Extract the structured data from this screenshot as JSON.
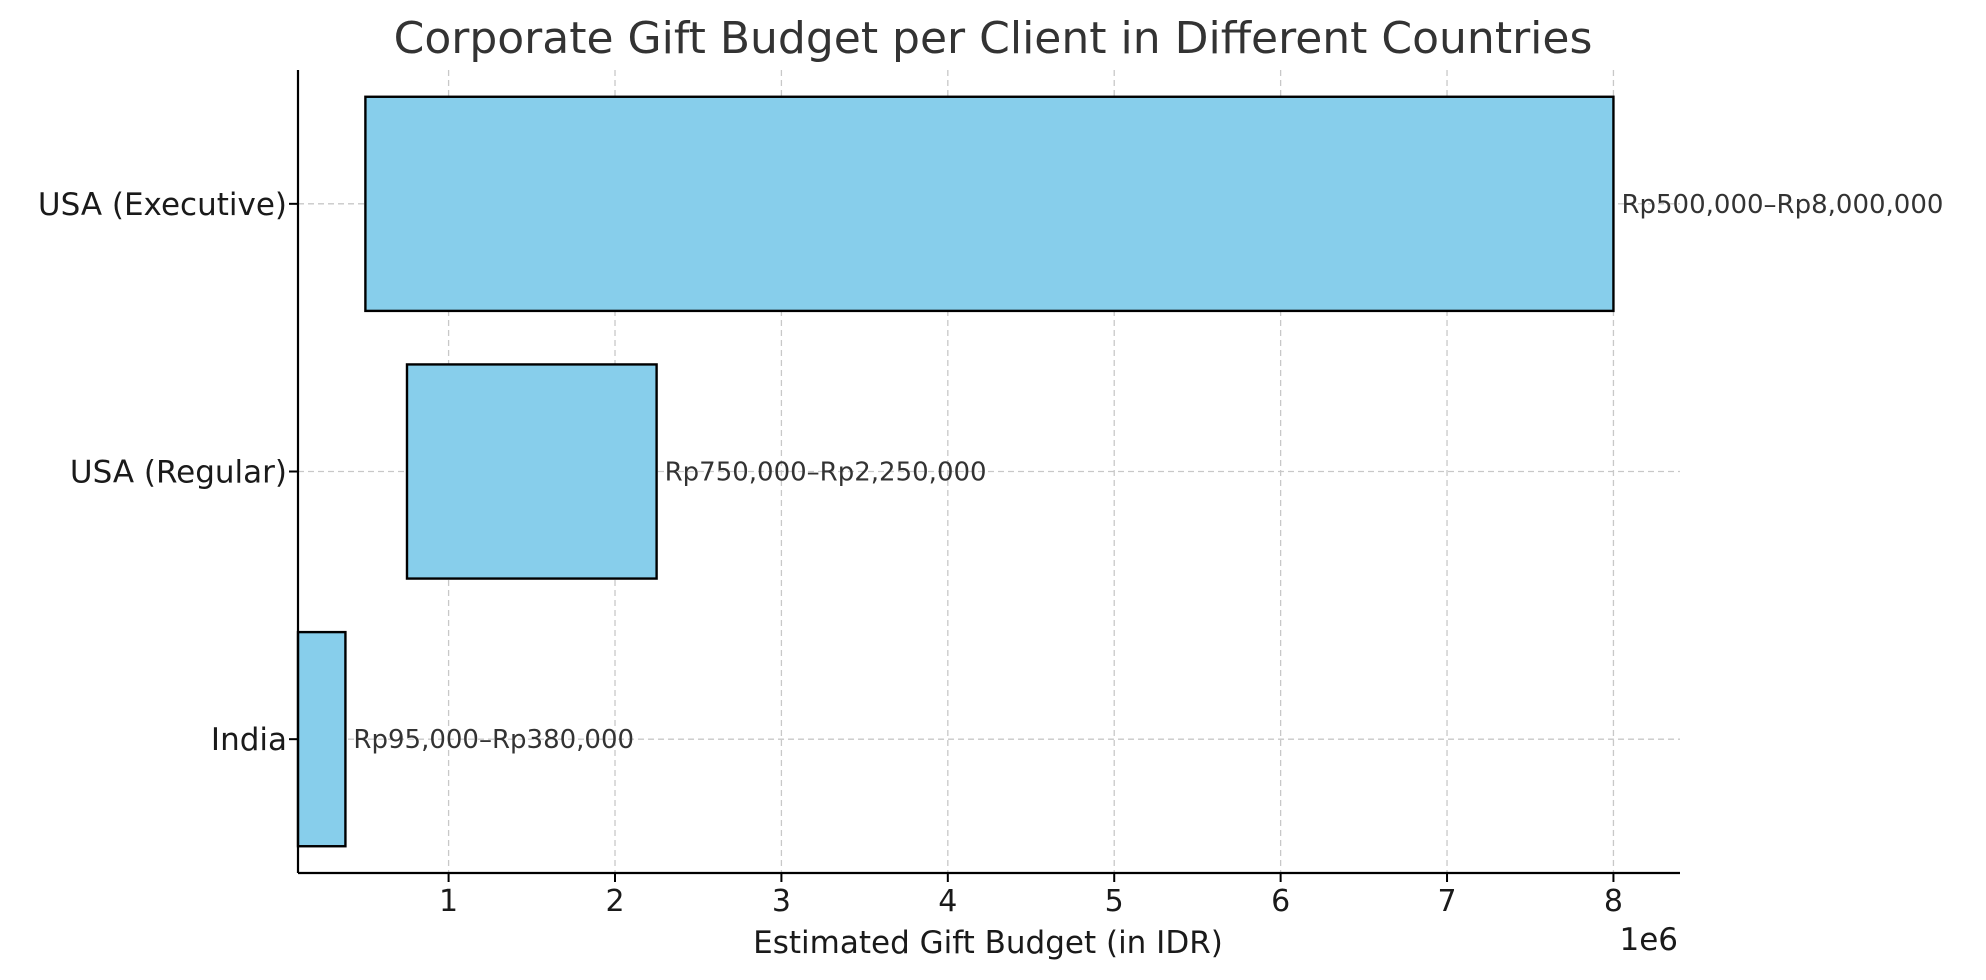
{
  "chart_data": {
    "type": "bar",
    "orientation": "horizontal",
    "title": "Corporate Gift Budget per Client in Different Countries",
    "xlabel": "Estimated Gift Budget (in IDR)",
    "ylabel": "",
    "x_offset_label": "1e6",
    "categories": [
      "USA (Executive)",
      "USA (Regular)",
      "India"
    ],
    "bars": [
      {
        "category": "USA (Executive)",
        "start": 500000,
        "end": 8000000,
        "label": "Rp500,000–Rp8,000,000"
      },
      {
        "category": "USA (Regular)",
        "start": 750000,
        "end": 2250000,
        "label": "Rp750,000–Rp2,250,000"
      },
      {
        "category": "India",
        "start": 95000,
        "end": 380000,
        "label": "Rp95,000–Rp380,000"
      }
    ],
    "xlim": [
      95000,
      8400000
    ],
    "x_ticks": [
      1000000,
      2000000,
      3000000,
      4000000,
      5000000,
      6000000,
      7000000,
      8000000
    ],
    "x_tick_labels": [
      "1",
      "2",
      "3",
      "4",
      "5",
      "6",
      "7",
      "8"
    ],
    "grid": true,
    "colors": {
      "bar_fill": "#87CEEB",
      "bar_edge": "#000000"
    }
  }
}
